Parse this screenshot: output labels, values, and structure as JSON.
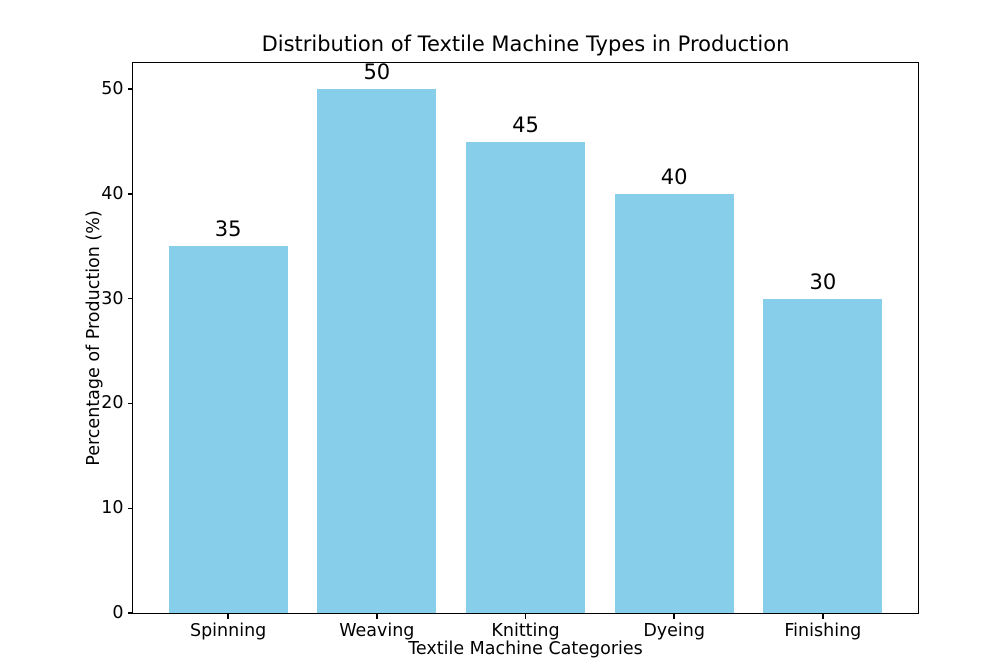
{
  "figure": {
    "background": "#ffffff"
  },
  "chart_data": {
    "type": "bar",
    "title": "Distribution of Textile Machine Types in Production",
    "xlabel": "Textile Machine Categories",
    "ylabel": "Percentage of Production (%)",
    "categories": [
      "Spinning",
      "Weaving",
      "Knitting",
      "Dyeing",
      "Finishing"
    ],
    "values": [
      35,
      50,
      45,
      40,
      30
    ],
    "bar_value_labels": [
      "35",
      "50",
      "45",
      "40",
      "30"
    ],
    "yticks": [
      0,
      10,
      20,
      30,
      40,
      50
    ],
    "ytick_labels": [
      "0",
      "10",
      "20",
      "30",
      "40",
      "50"
    ],
    "ylim": [
      0,
      52.5
    ],
    "bar_color": "#87CEEB",
    "axis_color": "#000000",
    "text_color": "#000000",
    "grid": false,
    "legend": "none"
  }
}
